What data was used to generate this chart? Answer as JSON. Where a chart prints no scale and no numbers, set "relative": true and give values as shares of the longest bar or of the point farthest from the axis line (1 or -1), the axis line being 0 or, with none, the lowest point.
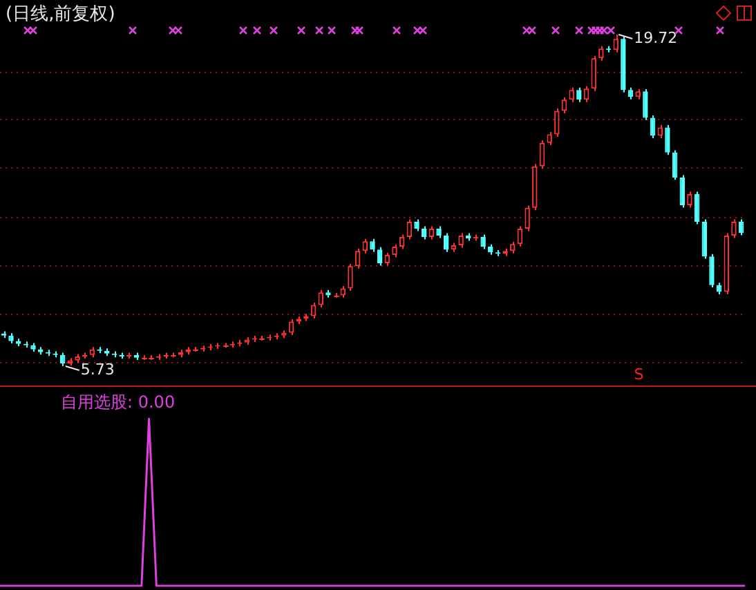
{
  "chart_data": [
    {
      "type": "candlestick",
      "title": "(日线,前复权)",
      "categories": [
        null,
        null,
        null,
        null,
        null,
        null,
        null,
        null,
        null,
        null,
        null,
        null,
        null,
        null,
        null,
        null,
        null,
        null,
        null,
        null,
        null,
        null,
        null,
        null,
        null,
        null,
        null,
        null,
        null,
        null,
        null,
        null,
        null,
        null,
        null,
        null,
        null,
        null,
        null,
        null,
        null,
        null,
        null,
        null,
        null,
        null,
        null,
        null,
        null,
        null,
        null,
        null,
        null,
        null,
        null,
        null,
        null,
        null,
        null,
        null,
        null,
        null,
        null,
        null,
        null,
        null,
        null,
        null,
        null,
        null,
        null,
        null,
        null,
        null,
        null,
        null,
        null,
        null,
        null,
        null,
        null,
        null,
        null,
        null,
        null,
        null,
        null,
        null,
        null,
        null,
        null,
        null,
        null,
        null,
        null,
        null,
        null,
        null,
        null,
        null,
        null
      ],
      "ohlc": [
        [
          7.1,
          7.2,
          6.92,
          7.02
        ],
        [
          7.02,
          7.12,
          6.69,
          6.79
        ],
        [
          6.79,
          6.89,
          6.57,
          6.67
        ],
        [
          6.67,
          6.77,
          6.51,
          6.61
        ],
        [
          6.61,
          6.71,
          6.34,
          6.44
        ],
        [
          6.44,
          6.54,
          6.22,
          6.32
        ],
        [
          6.32,
          6.42,
          6.16,
          6.26
        ],
        [
          6.26,
          6.36,
          6.1,
          6.2
        ],
        [
          6.2,
          6.3,
          5.73,
          5.85
        ],
        [
          5.85,
          6.07,
          5.75,
          5.97
        ],
        [
          5.97,
          6.24,
          5.87,
          6.14
        ],
        [
          6.14,
          6.3,
          6.04,
          6.2
        ],
        [
          6.2,
          6.54,
          6.1,
          6.44
        ],
        [
          6.44,
          6.54,
          6.28,
          6.38
        ],
        [
          6.38,
          6.48,
          6.16,
          6.26
        ],
        [
          6.26,
          6.36,
          6.1,
          6.2
        ],
        [
          6.2,
          6.3,
          6.04,
          6.14
        ],
        [
          6.14,
          6.3,
          6.04,
          6.2
        ],
        [
          6.2,
          6.3,
          5.99,
          6.09
        ],
        [
          6.09,
          6.19,
          5.99,
          6.09
        ],
        [
          6.09,
          6.19,
          5.99,
          6.09
        ],
        [
          6.09,
          6.24,
          5.99,
          6.14
        ],
        [
          6.14,
          6.3,
          6.04,
          6.2
        ],
        [
          6.2,
          6.3,
          6.1,
          6.2
        ],
        [
          6.2,
          6.42,
          6.1,
          6.32
        ],
        [
          6.32,
          6.54,
          6.22,
          6.44
        ],
        [
          6.44,
          6.54,
          6.34,
          6.44
        ],
        [
          6.44,
          6.6,
          6.34,
          6.5
        ],
        [
          6.5,
          6.66,
          6.4,
          6.56
        ],
        [
          6.56,
          6.71,
          6.46,
          6.61
        ],
        [
          6.61,
          6.71,
          6.51,
          6.61
        ],
        [
          6.61,
          6.77,
          6.51,
          6.67
        ],
        [
          6.67,
          6.83,
          6.57,
          6.73
        ],
        [
          6.73,
          6.95,
          6.63,
          6.85
        ],
        [
          6.85,
          7.01,
          6.75,
          6.91
        ],
        [
          6.91,
          7.01,
          6.81,
          6.91
        ],
        [
          6.91,
          7.06,
          6.81,
          6.96
        ],
        [
          6.96,
          7.12,
          6.86,
          7.02
        ],
        [
          7.02,
          7.24,
          6.92,
          7.14
        ],
        [
          7.14,
          7.71,
          7.04,
          7.61
        ],
        [
          7.61,
          7.83,
          7.51,
          7.73
        ],
        [
          7.73,
          7.94,
          7.63,
          7.84
        ],
        [
          7.84,
          8.41,
          7.74,
          8.31
        ],
        [
          8.31,
          8.94,
          8.21,
          8.84
        ],
        [
          8.84,
          8.94,
          8.62,
          8.72
        ],
        [
          8.72,
          8.82,
          8.62,
          8.72
        ],
        [
          8.72,
          9.11,
          8.62,
          9.01
        ],
        [
          9.01,
          10.05,
          8.91,
          9.95
        ],
        [
          9.95,
          10.69,
          9.85,
          10.59
        ],
        [
          10.59,
          11.1,
          10.49,
          11.0
        ],
        [
          11.0,
          11.1,
          10.55,
          10.65
        ],
        [
          10.65,
          10.75,
          9.97,
          10.07
        ],
        [
          10.07,
          10.52,
          9.97,
          10.42
        ],
        [
          10.42,
          10.87,
          10.32,
          10.77
        ],
        [
          10.77,
          11.28,
          10.67,
          11.18
        ],
        [
          11.18,
          11.92,
          11.08,
          11.82
        ],
        [
          11.82,
          11.92,
          11.43,
          11.53
        ],
        [
          11.53,
          11.63,
          11.08,
          11.18
        ],
        [
          11.18,
          11.63,
          11.08,
          11.53
        ],
        [
          11.53,
          11.63,
          11.14,
          11.24
        ],
        [
          11.24,
          11.34,
          10.55,
          10.65
        ],
        [
          10.65,
          10.93,
          10.55,
          10.83
        ],
        [
          10.83,
          11.34,
          10.73,
          11.24
        ],
        [
          11.24,
          11.34,
          11.02,
          11.12
        ],
        [
          11.12,
          11.28,
          11.02,
          11.18
        ],
        [
          11.18,
          11.28,
          10.67,
          10.77
        ],
        [
          10.77,
          10.87,
          10.43,
          10.53
        ],
        [
          10.53,
          10.63,
          10.37,
          10.47
        ],
        [
          10.47,
          10.69,
          10.37,
          10.59
        ],
        [
          10.59,
          10.98,
          10.49,
          10.88
        ],
        [
          10.88,
          11.63,
          10.78,
          11.53
        ],
        [
          11.53,
          12.51,
          11.43,
          12.41
        ],
        [
          12.41,
          14.26,
          12.31,
          14.16
        ],
        [
          14.16,
          15.25,
          14.06,
          15.15
        ],
        [
          15.15,
          15.61,
          15.05,
          15.51
        ],
        [
          15.51,
          16.6,
          15.41,
          16.5
        ],
        [
          16.5,
          17.07,
          16.4,
          16.97
        ],
        [
          16.97,
          17.48,
          16.87,
          17.38
        ],
        [
          17.38,
          17.48,
          16.87,
          16.97
        ],
        [
          16.97,
          17.54,
          16.87,
          17.44
        ],
        [
          17.44,
          18.82,
          17.34,
          18.72
        ],
        [
          18.72,
          19.23,
          18.62,
          19.13
        ],
        [
          19.13,
          19.23,
          18.97,
          19.07
        ],
        [
          19.07,
          19.72,
          18.97,
          19.54
        ],
        [
          19.54,
          19.64,
          17.28,
          17.38
        ],
        [
          17.38,
          17.48,
          16.99,
          17.09
        ],
        [
          17.09,
          17.42,
          16.99,
          17.32
        ],
        [
          17.32,
          17.42,
          16.11,
          16.21
        ],
        [
          16.21,
          16.31,
          15.35,
          15.45
        ],
        [
          15.45,
          15.9,
          15.35,
          15.8
        ],
        [
          15.8,
          15.9,
          14.64,
          14.74
        ],
        [
          14.74,
          14.84,
          13.59,
          13.69
        ],
        [
          13.69,
          13.79,
          12.42,
          12.52
        ],
        [
          12.52,
          13.09,
          12.42,
          12.99
        ],
        [
          12.99,
          13.09,
          11.72,
          11.82
        ],
        [
          11.82,
          11.92,
          10.26,
          10.36
        ],
        [
          10.36,
          10.46,
          9.05,
          9.15
        ],
        [
          9.15,
          9.25,
          8.76,
          8.86
        ],
        [
          8.86,
          11.34,
          8.76,
          11.24
        ],
        [
          11.24,
          11.92,
          11.14,
          11.82
        ],
        [
          11.82,
          11.92,
          11.25,
          11.35
        ]
      ],
      "colors": [
        "#54ffff",
        "#54ffff",
        "#54ffff",
        "#54ffff",
        "#54ffff",
        "#54ffff",
        "#54ffff",
        "#54ffff",
        "#54ffff",
        "#ff3232",
        "#ff3232",
        "#ff3232",
        "#ff3232",
        "#54ffff",
        "#54ffff",
        "#54ffff",
        "#54ffff",
        "#ff3232",
        "#54ffff",
        "#ff3232",
        "#ff3232",
        "#ff3232",
        "#ff3232",
        "#ff3232",
        "#ff3232",
        "#ff3232",
        "#ff3232",
        "#ff3232",
        "#ff3232",
        "#ff3232",
        "#ff3232",
        "#ff3232",
        "#ff3232",
        "#ff3232",
        "#ff3232",
        "#ff3232",
        "#ff3232",
        "#ff3232",
        "#ff3232",
        "#ff3232",
        "#ff3232",
        "#ff3232",
        "#ff3232",
        "#ff3232",
        "#54ffff",
        "#ff3232",
        "#ff3232",
        "#ff3232",
        "#ff3232",
        "#ff3232",
        "#54ffff",
        "#54ffff",
        "#ff3232",
        "#ff3232",
        "#ff3232",
        "#ff3232",
        "#54ffff",
        "#54ffff",
        "#ff3232",
        "#54ffff",
        "#54ffff",
        "#ff3232",
        "#ff3232",
        "#54ffff",
        "#ff3232",
        "#54ffff",
        "#54ffff",
        "#54ffff",
        "#ff3232",
        "#ff3232",
        "#ff3232",
        "#ff3232",
        "#ff3232",
        "#ff3232",
        "#ff3232",
        "#ff3232",
        "#ff3232",
        "#ff3232",
        "#54ffff",
        "#ff3232",
        "#ff3232",
        "#ff3232",
        "#54ffff",
        "#ff3232",
        "#54ffff",
        "#54ffff",
        "#ff3232",
        "#54ffff",
        "#54ffff",
        "#ff3232",
        "#54ffff",
        "#54ffff",
        "#54ffff",
        "#ff3232",
        "#54ffff",
        "#54ffff",
        "#54ffff",
        "#54ffff",
        "#ff3232",
        "#ff3232",
        "#54ffff"
      ],
      "yticks": [
        {
          "value": 18.14,
          "label": null
        },
        {
          "value": 16.15,
          "label": null
        },
        {
          "value": 14.1,
          "label": null
        },
        {
          "value": 12.05,
          "label": null
        },
        {
          "value": 10.01,
          "label": null
        },
        {
          "value": 7.96,
          "label": null
        },
        {
          "value": 5.91,
          "label": null
        }
      ],
      "grid": "y",
      "legend": false,
      "tick_labels": false,
      "annotations": [
        "19.72",
        "5.73",
        "S"
      ]
    },
    {
      "type": "line",
      "relative": true,
      "legend": false,
      "tick_labels": false,
      "marker": "none",
      "categories": [
        null,
        null,
        null,
        null,
        null,
        null,
        null,
        null,
        null,
        null,
        null,
        null,
        null,
        null,
        null,
        null,
        null,
        null,
        null,
        null,
        null,
        null,
        null,
        null,
        null,
        null,
        null,
        null,
        null,
        null,
        null,
        null,
        null,
        null,
        null,
        null,
        null,
        null,
        null,
        null,
        null,
        null,
        null,
        null,
        null,
        null,
        null,
        null,
        null,
        null,
        null,
        null,
        null,
        null,
        null,
        null,
        null,
        null,
        null,
        null,
        null,
        null,
        null,
        null,
        null,
        null,
        null,
        null,
        null,
        null,
        null,
        null,
        null,
        null,
        null,
        null,
        null,
        null,
        null,
        null,
        null,
        null,
        null,
        null,
        null,
        null,
        null,
        null,
        null,
        null,
        null,
        null,
        null,
        null,
        null,
        null,
        null,
        null,
        null,
        null,
        null
      ],
      "series": [
        {
          "color": "#e040e0",
          "values": [
            0,
            0,
            0,
            0,
            0,
            0,
            0,
            0,
            0,
            0,
            0,
            0,
            0,
            0,
            0,
            0,
            0,
            0,
            0,
            0,
            1,
            0,
            0,
            0,
            0,
            0,
            0,
            0,
            0,
            0,
            0,
            0,
            0,
            0,
            0,
            0,
            0,
            0,
            0,
            0,
            0,
            0,
            0,
            0,
            0,
            0,
            0,
            0,
            0,
            0,
            0,
            0,
            0,
            0,
            0,
            0,
            0,
            0,
            0,
            0,
            0,
            0,
            0,
            0,
            0,
            0,
            0,
            0,
            0,
            0,
            0,
            0,
            0,
            0,
            0,
            0,
            0,
            0,
            0,
            0,
            0,
            0,
            0,
            0,
            0,
            0,
            0,
            0,
            0,
            0,
            0,
            0,
            0,
            0,
            0,
            0,
            0,
            0,
            0,
            0,
            0
          ]
        }
      ],
      "annotations": [
        "自用选股: 0.00"
      ]
    }
  ]
}
